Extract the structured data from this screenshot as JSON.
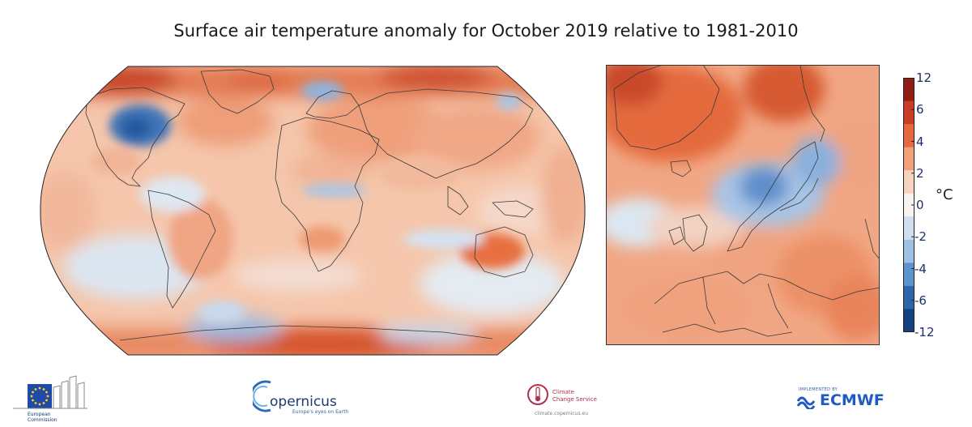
{
  "title": "Surface air temperature anomaly for October 2019 relative to 1981-2010",
  "colorbar": {
    "unit": "°C",
    "ticks": [
      "12",
      "6",
      "4",
      "2",
      "0",
      "-2",
      "-4",
      "-6",
      "-12"
    ],
    "colors": [
      "#8f1d14",
      "#c83d25",
      "#e5683f",
      "#f2a07a",
      "#f7d2bd",
      "#f6f3f1",
      "#cfdff0",
      "#9cc1e3",
      "#5b95cc",
      "#2e64aa",
      "#163f7e"
    ]
  },
  "palette": {
    "warm_strong": "#d4552f",
    "warm": "#ee9a72",
    "warm_light": "#f6c7ad",
    "neutral": "#f4eeea",
    "cool_light": "#d3e2f1",
    "cool": "#7fa8d6",
    "cool_strong": "#2f62a8"
  },
  "logos": {
    "ec": {
      "line1": "European",
      "line2": "Commission"
    },
    "copernicus": {
      "name": "opernicus",
      "tagline": "Europe's eyes on Earth"
    },
    "c3s": {
      "line1": "Climate",
      "line2": "Change Service",
      "url": "climate.copernicus.eu"
    },
    "ecmwf": {
      "tag": "IMPLEMENTED BY",
      "name": "ECMWF"
    }
  }
}
